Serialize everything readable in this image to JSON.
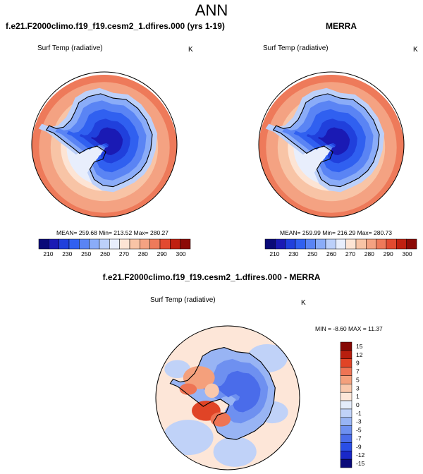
{
  "page": {
    "title": "ANN"
  },
  "panels": [
    {
      "title": "f.e21.F2000climo.f19_f19.cesm2_1.dfires.000 (yrs 1-19)",
      "variable": "Surf Temp (radiative)",
      "units": "K",
      "stats": "MEAN= 259.68  Min= 213.52  Max= 280.27"
    },
    {
      "title": "MERRA",
      "variable": "Surf Temp (radiative)",
      "units": "K",
      "stats": "MEAN= 259.99  Min= 216.29  Max= 280.73"
    },
    {
      "title": "f.e21.F2000climo.f19_f19.cesm2_1.dfires.000 - MERRA",
      "variable": "Surf Temp (radiative)",
      "units": "K",
      "stats": "MIN = -8.60 MAX = 11.37"
    }
  ],
  "colors": {
    "abs_scale": [
      "#0a0a78",
      "#1a1ab4",
      "#2040dc",
      "#3060f0",
      "#5a84f4",
      "#8aacf8",
      "#bcd0fa",
      "#e8eefc",
      "#fde4d4",
      "#f8c4a6",
      "#f4a282",
      "#ee7a5a",
      "#e24a30",
      "#c02010",
      "#8c0a06"
    ],
    "diff_scale": [
      "#0a0a7a",
      "#1a28c8",
      "#2a4ee6",
      "#4a6cea",
      "#6e90f0",
      "#98b4f4",
      "#c0d2f8",
      "#e4ecfa",
      "#fde6d8",
      "#f9c8ac",
      "#f4a07c",
      "#ee7454",
      "#e04426",
      "#b81e0e",
      "#860804"
    ],
    "land_outline": "#000000"
  },
  "chart_data": [
    {
      "type": "heatmap",
      "projection": "south-polar-stereographic",
      "title": "f.e21.F2000climo.f19_f19.cesm2_1.dfires.000 (yrs 1-19)",
      "variable": "Surf Temp (radiative)",
      "units": "K",
      "mean": 259.68,
      "min": 213.52,
      "max": 280.27,
      "colorbar_ticks": [
        "210",
        "230",
        "250",
        "260",
        "270",
        "280",
        "290",
        "300"
      ]
    },
    {
      "type": "heatmap",
      "projection": "south-polar-stereographic",
      "title": "MERRA",
      "variable": "Surf Temp (radiative)",
      "units": "K",
      "mean": 259.99,
      "min": 216.29,
      "max": 280.73,
      "colorbar_ticks": [
        "210",
        "230",
        "250",
        "260",
        "270",
        "280",
        "290",
        "300"
      ]
    },
    {
      "type": "heatmap",
      "projection": "south-polar-stereographic",
      "title": "f.e21.F2000climo.f19_f19.cesm2_1.dfires.000 - MERRA",
      "variable": "Surf Temp (radiative)",
      "units": "K",
      "min": -8.6,
      "max": 11.37,
      "colorbar_ticks": [
        "15",
        "12",
        "9",
        "7",
        "5",
        "3",
        "1",
        "0",
        "-1",
        "-3",
        "-5",
        "-7",
        "-9",
        "-12",
        "-15"
      ]
    }
  ]
}
